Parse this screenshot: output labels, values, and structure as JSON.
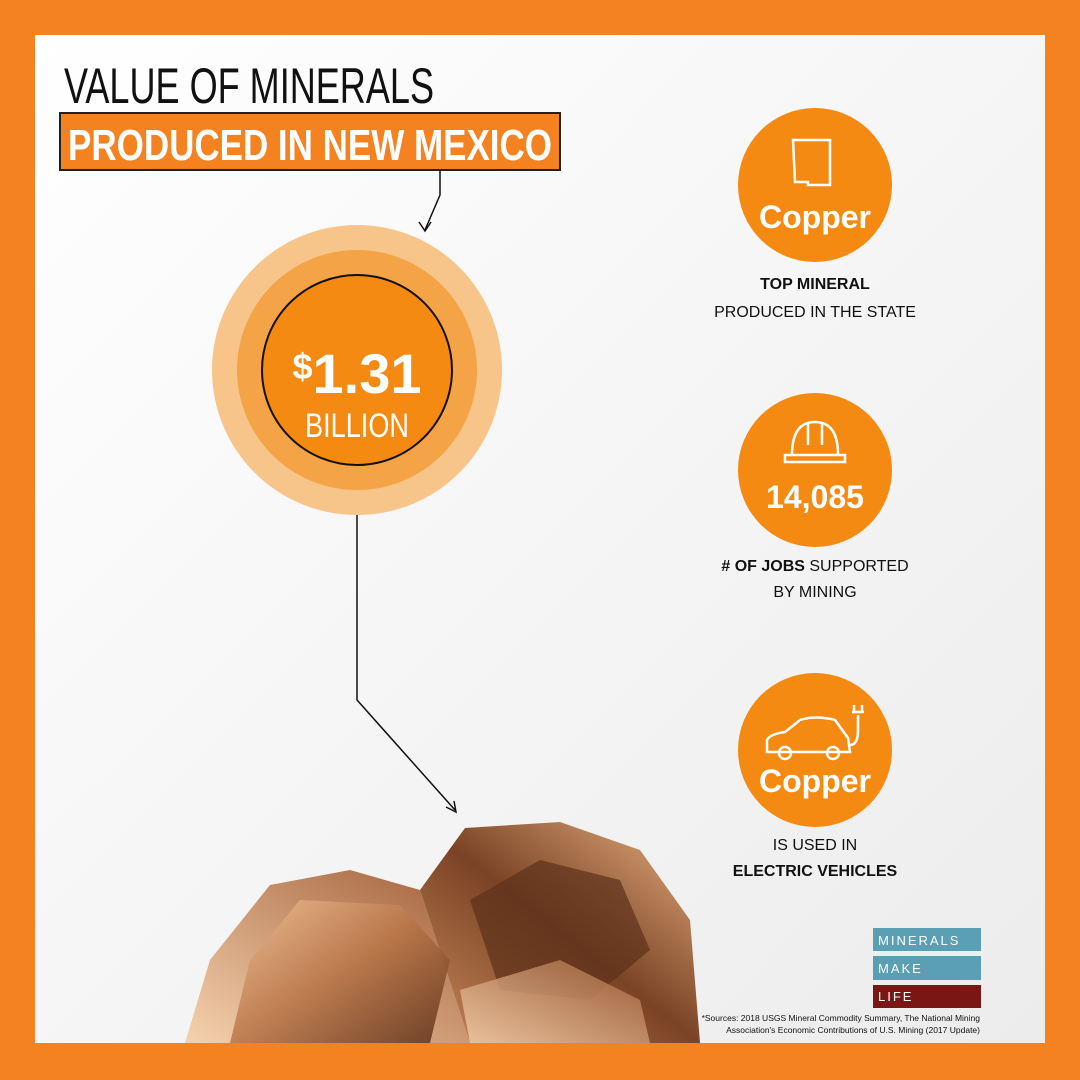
{
  "header": {
    "line1": "VALUE OF MINERALS",
    "line2": "PRODUCED IN NEW MEXICO"
  },
  "value": {
    "currency": "$",
    "amount": "1.31",
    "unit": "BILLION"
  },
  "stats": [
    {
      "label": "Copper",
      "bold": "TOP MINERAL",
      "text": "PRODUCED IN THE STATE"
    },
    {
      "label": "14,085",
      "bold": "# OF JOBS",
      "text": " SUPPORTED",
      "text2": "BY MINING"
    },
    {
      "label": "Copper",
      "text": "IS USED IN",
      "bold": "ELECTRIC VEHICLES"
    }
  ],
  "logo": [
    "MINERALS",
    "MAKE",
    "LIFE"
  ],
  "sources": [
    "*Sources: 2018 USGS Mineral Commodity Summary, The National Mining",
    "Association's  Economic Contributions of U.S. Mining (2017 Update)"
  ]
}
